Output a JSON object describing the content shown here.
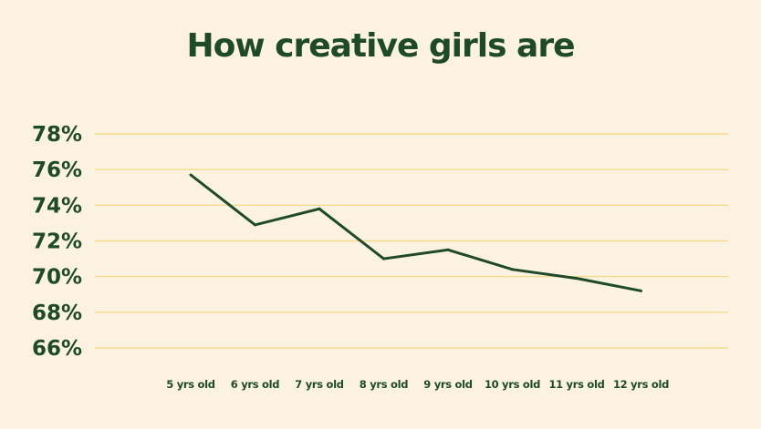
{
  "chart_data": {
    "type": "line",
    "title": "How creative girls are",
    "xlabel": "",
    "ylabel": "",
    "categories": [
      "5 yrs old",
      "6 yrs old",
      "7 yrs old",
      "8 yrs old",
      "9 yrs old",
      "10 yrs old",
      "11 yrs old",
      "12 yrs old"
    ],
    "series": [
      {
        "values": [
          75.7,
          72.9,
          73.8,
          71.0,
          71.5,
          70.4,
          69.9,
          69.2
        ]
      }
    ],
    "ylim": [
      66,
      78
    ],
    "yticks": [
      78,
      76,
      74,
      72,
      70,
      68,
      66
    ],
    "ytick_labels": [
      "78%",
      "76%",
      "74%",
      "72%",
      "70%",
      "68%",
      "66%"
    ],
    "grid": true,
    "legend": "none",
    "colors": {
      "background": "#FBF2E1",
      "line": "#1F4A2A",
      "grid": "#F2D77C",
      "text": "#1F4A2A"
    }
  }
}
